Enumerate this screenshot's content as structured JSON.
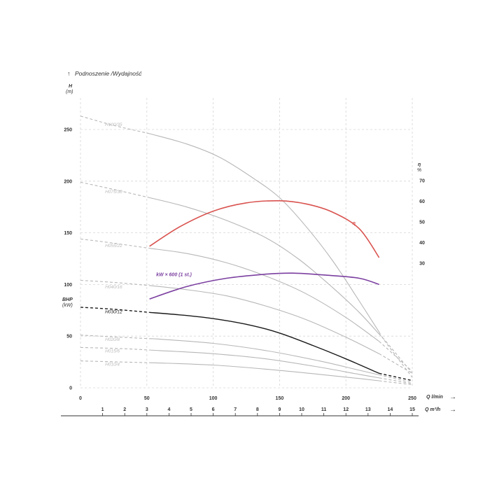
{
  "chart_data": {
    "type": "line",
    "title": "Podnoszenie /Wydajność",
    "y_left_label": "H",
    "y_left_unit": "(m)",
    "y_left_ticks": [
      "0",
      "50",
      "100",
      "150",
      "200",
      "250"
    ],
    "bhp_label": "BHP",
    "bhp_unit": "(kW)",
    "y_right_label": "η",
    "y_right_unit": "%",
    "y_right_ticks": [
      "30",
      "40",
      "50",
      "60",
      "70"
    ],
    "x_top_label": "Q l/min",
    "x_top_ticks": [
      "0",
      "50",
      "100",
      "150",
      "200",
      "250"
    ],
    "x_bottom_label": "Q m³/h",
    "x_bottom_ticks": [
      "1",
      "2",
      "3",
      "4",
      "5",
      "6",
      "7",
      "8",
      "9",
      "10",
      "11",
      "12",
      "13",
      "14",
      "15"
    ],
    "xlim": [
      0,
      250
    ],
    "ylim": [
      0,
      265
    ],
    "grid": true,
    "series": [
      {
        "name": "H100/35",
        "color": "#b7b7b7",
        "points": [
          [
            0,
            263
          ],
          [
            25,
            254
          ],
          [
            52,
            246
          ],
          [
            80,
            236
          ],
          [
            105,
            223
          ],
          [
            130,
            203
          ],
          [
            150,
            184
          ],
          [
            170,
            156
          ],
          [
            190,
            123
          ],
          [
            210,
            84
          ],
          [
            230,
            44
          ],
          [
            250,
            10
          ]
        ],
        "solid_from": 52,
        "solid_to": 225
      },
      {
        "name": "H075/30",
        "color": "#b7b7b7",
        "points": [
          [
            0,
            199
          ],
          [
            25,
            192
          ],
          [
            52,
            184
          ],
          [
            80,
            175
          ],
          [
            110,
            162
          ],
          [
            140,
            145
          ],
          [
            165,
            124
          ],
          [
            190,
            97
          ],
          [
            210,
            73
          ],
          [
            230,
            45
          ],
          [
            250,
            14
          ]
        ],
        "solid_from": 52,
        "solid_to": 225
      },
      {
        "name": "H055/22",
        "color": "#b7b7b7",
        "points": [
          [
            0,
            144
          ],
          [
            25,
            140
          ],
          [
            52,
            135
          ],
          [
            80,
            130
          ],
          [
            110,
            121
          ],
          [
            140,
            108
          ],
          [
            170,
            91
          ],
          [
            200,
            68
          ],
          [
            225,
            45
          ],
          [
            250,
            16
          ]
        ],
        "solid_from": 52,
        "solid_to": 225
      },
      {
        "name": "H040/16",
        "color": "#b7b7b7",
        "points": [
          [
            0,
            104
          ],
          [
            25,
            102
          ],
          [
            52,
            99
          ],
          [
            80,
            95
          ],
          [
            110,
            89
          ],
          [
            140,
            79
          ],
          [
            170,
            66
          ],
          [
            200,
            49
          ],
          [
            225,
            33
          ],
          [
            250,
            14
          ]
        ],
        "solid_from": 52,
        "solid_to": 225
      },
      {
        "name": "H030/12",
        "color": "#1a1a1a",
        "points": [
          [
            0,
            78
          ],
          [
            25,
            76
          ],
          [
            52,
            73
          ],
          [
            80,
            70
          ],
          [
            105,
            66
          ],
          [
            130,
            60
          ],
          [
            150,
            53
          ],
          [
            175,
            41
          ],
          [
            200,
            28
          ],
          [
            225,
            14
          ],
          [
            250,
            7
          ]
        ],
        "solid_from": 52,
        "solid_to": 225
      },
      {
        "name": "H020/8",
        "color": "#b7b7b7",
        "points": [
          [
            0,
            51
          ],
          [
            30,
            49
          ],
          [
            60,
            47
          ],
          [
            100,
            43
          ],
          [
            140,
            36
          ],
          [
            180,
            26
          ],
          [
            210,
            17
          ],
          [
            250,
            5
          ]
        ],
        "solid_from": 52,
        "solid_to": 225
      },
      {
        "name": "H015/6",
        "color": "#b7b7b7",
        "points": [
          [
            0,
            39
          ],
          [
            30,
            38
          ],
          [
            60,
            36
          ],
          [
            100,
            33
          ],
          [
            140,
            28
          ],
          [
            180,
            20
          ],
          [
            210,
            13
          ],
          [
            250,
            4
          ]
        ],
        "solid_from": 52,
        "solid_to": 225
      },
      {
        "name": "H010/4",
        "color": "#b7b7b7",
        "points": [
          [
            0,
            26
          ],
          [
            30,
            25
          ],
          [
            60,
            24
          ],
          [
            100,
            22
          ],
          [
            140,
            18
          ],
          [
            180,
            13
          ],
          [
            210,
            9
          ],
          [
            250,
            3
          ]
        ],
        "solid_from": 52,
        "solid_to": 225
      },
      {
        "name": "η",
        "color": "#d9534f",
        "points": [
          [
            52,
            137
          ],
          [
            75,
            156
          ],
          [
            100,
            171
          ],
          [
            125,
            179
          ],
          [
            150,
            181
          ],
          [
            170,
            178
          ],
          [
            190,
            170
          ],
          [
            210,
            154
          ],
          [
            225,
            126
          ]
        ]
      },
      {
        "name": "kW × 600 (1 st.)",
        "color": "#7b3fa0",
        "points": [
          [
            52,
            86
          ],
          [
            80,
            98
          ],
          [
            110,
            106
          ],
          [
            140,
            110
          ],
          [
            160,
            111
          ],
          [
            185,
            109
          ],
          [
            210,
            106
          ],
          [
            225,
            100
          ]
        ]
      }
    ]
  }
}
